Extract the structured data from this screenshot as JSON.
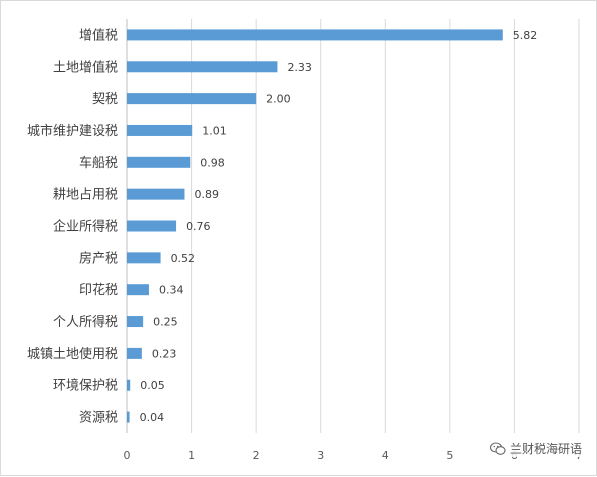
{
  "chart_data": {
    "type": "bar",
    "orientation": "horizontal",
    "categories": [
      "增值税",
      "土地增值税",
      "契税",
      "城市维护建设税",
      "车船税",
      "耕地占用税",
      "企业所得税",
      "房产税",
      "印花税",
      "个人所得税",
      "城镇土地使用税",
      "环境保护税",
      "资源税"
    ],
    "values": [
      5.82,
      2.33,
      2.0,
      1.01,
      0.98,
      0.89,
      0.76,
      0.52,
      0.34,
      0.25,
      0.23,
      0.05,
      0.04
    ],
    "value_labels": [
      "5.82",
      "2.33",
      "2.00",
      "1.01",
      "0.98",
      "0.89",
      "0.76",
      "0.52",
      "0.34",
      "0.25",
      "0.23",
      "0.05",
      "0.04"
    ],
    "xlim": [
      0,
      7
    ],
    "xticks": [
      "0",
      "1",
      "2",
      "3",
      "4",
      "5",
      "6",
      "7"
    ],
    "grid": "vertical",
    "bar_color": "#5B9BD5",
    "title": "",
    "xlabel": "",
    "ylabel": ""
  },
  "watermark": {
    "text": "兰财税海研语",
    "icon": "wechat-icon"
  }
}
